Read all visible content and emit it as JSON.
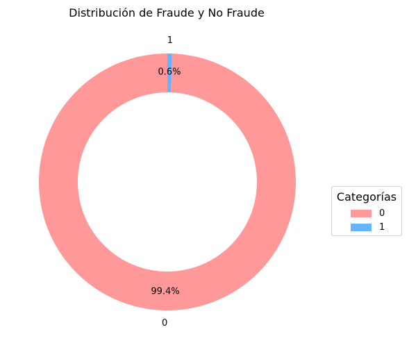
{
  "chart_data": {
    "type": "pie",
    "title": "Distribución de Fraude y No Fraude",
    "donut": true,
    "start_angle_deg": 90,
    "direction": "counterclockwise",
    "slices": [
      {
        "label": "0",
        "percent": 99.4,
        "percent_label": "99.4%",
        "color": "#ff9999"
      },
      {
        "label": "1",
        "percent": 0.6,
        "percent_label": "0.6%",
        "color": "#66b3ff"
      }
    ],
    "legend": {
      "title": "Categorías",
      "placement": "center-right",
      "entries": [
        {
          "label": "0",
          "color": "#ff9999"
        },
        {
          "label": "1",
          "color": "#66b3ff"
        }
      ]
    }
  }
}
